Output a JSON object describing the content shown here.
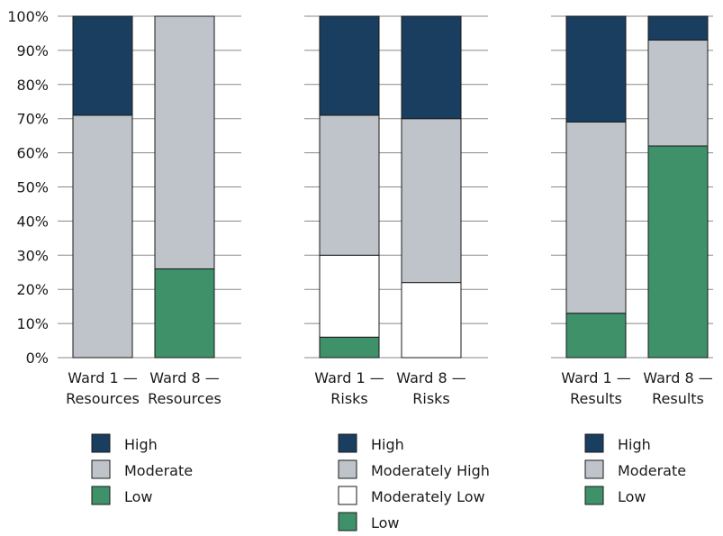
{
  "chart_data": {
    "type": "bar",
    "stacked": true,
    "orientation": "vertical",
    "ylim": [
      0,
      100
    ],
    "yticks": [
      0,
      10,
      20,
      30,
      40,
      50,
      60,
      70,
      80,
      90,
      100
    ],
    "ytick_labels": [
      "0%",
      "10%",
      "20%",
      "30%",
      "40%",
      "50%",
      "60%",
      "70%",
      "80%",
      "90%",
      "100%"
    ],
    "grid": true,
    "colors": {
      "High": "#1a3e5f",
      "Moderately High": "#bec4c9",
      "Moderate": "#bec4c9",
      "Moderately Low": "#ffffff",
      "Low": "#3f9169"
    },
    "panels": [
      {
        "categories": [
          [
            "Ward 1 —",
            "Resources"
          ],
          [
            "Ward 8 —",
            "Resources"
          ]
        ],
        "series": [
          {
            "name": "Low",
            "values": [
              0,
              26
            ]
          },
          {
            "name": "Moderate",
            "values": [
              71,
              74
            ]
          },
          {
            "name": "High",
            "values": [
              29,
              0
            ]
          }
        ],
        "legend": [
          "High",
          "Moderate",
          "Low"
        ]
      },
      {
        "categories": [
          [
            "Ward 1 —",
            "Risks"
          ],
          [
            "Ward 8 —",
            "Risks"
          ]
        ],
        "series": [
          {
            "name": "Low",
            "values": [
              6,
              0
            ]
          },
          {
            "name": "Moderately Low",
            "values": [
              24,
              22
            ]
          },
          {
            "name": "Moderately High",
            "values": [
              41,
              48
            ]
          },
          {
            "name": "High",
            "values": [
              29,
              30
            ]
          }
        ],
        "legend": [
          "High",
          "Moderately High",
          "Moderately Low",
          "Low"
        ]
      },
      {
        "categories": [
          [
            "Ward 1 —",
            "Results"
          ],
          [
            "Ward 8 —",
            "Results"
          ]
        ],
        "series": [
          {
            "name": "Low",
            "values": [
              13,
              62
            ]
          },
          {
            "name": "Moderate",
            "values": [
              56,
              31
            ]
          },
          {
            "name": "High",
            "values": [
              31,
              7
            ]
          }
        ],
        "legend": [
          "High",
          "Moderate",
          "Low"
        ]
      }
    ]
  }
}
